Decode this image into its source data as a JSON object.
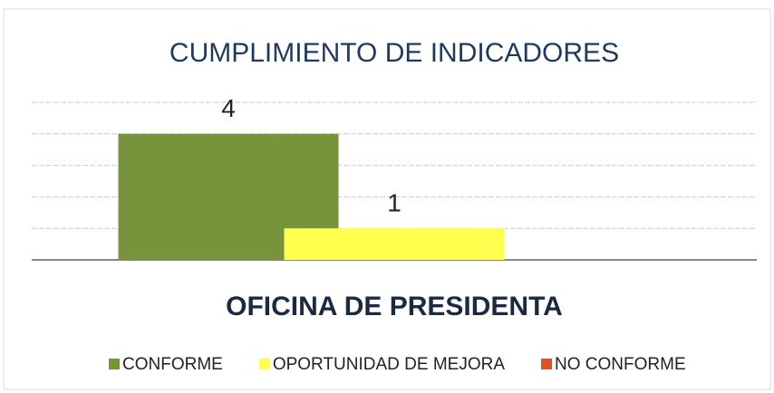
{
  "chart_data": {
    "type": "bar",
    "title": "CUMPLIMIENTO DE INDICADORES",
    "categories": [
      "OFICINA DE PRESIDENTA"
    ],
    "series": [
      {
        "name": "CONFORME",
        "color": "#77933c",
        "values": [
          4
        ]
      },
      {
        "name": "OPORTUNIDAD DE MEJORA",
        "color": "#ffff4d",
        "values": [
          1
        ]
      },
      {
        "name": "NO CONFORME",
        "color": "#e0502a",
        "values": [
          0
        ]
      }
    ],
    "ylim": [
      0,
      5
    ],
    "yticks": [
      0,
      1,
      2,
      3,
      4,
      5
    ],
    "grid": true,
    "legend": "bottom"
  }
}
